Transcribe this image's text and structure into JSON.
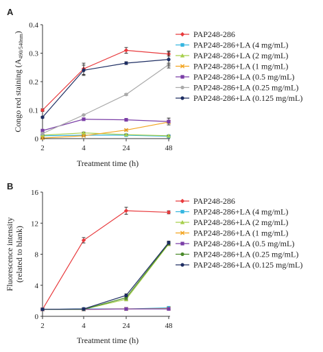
{
  "chart_data": [
    {
      "type": "line",
      "panel_label": "A",
      "title": "",
      "xlabel": "Treatment time (h)",
      "ylabel": "Congo red staining (A",
      "ylabel_sub": "490/540nm",
      "ylabel_close": ")",
      "categories": [
        "2",
        "4",
        "24",
        "48"
      ],
      "ylim": [
        0,
        0.4
      ],
      "yticks": [
        "0",
        "0.1",
        "0.2",
        "0.3",
        "0.4"
      ],
      "grid": false,
      "legend_position": "right",
      "series": [
        {
          "name": "PAP248-286",
          "color": "#e8393c",
          "marker": "diamond",
          "values": [
            0.1,
            0.245,
            0.31,
            0.297
          ],
          "err": [
            0.005,
            0.02,
            0.01,
            0.007
          ]
        },
        {
          "name": "PAP248-286+LA (4 mg/mL)",
          "color": "#35b6e0",
          "marker": "square",
          "values": [
            0.01,
            0.012,
            0.012,
            0.008
          ],
          "err": [
            0.002,
            0.002,
            0.002,
            0.002
          ]
        },
        {
          "name": "PAP248-286+LA (2 mg/mL)",
          "color": "#a6cf4c",
          "marker": "triangle",
          "values": [
            0.012,
            0.02,
            0.014,
            0.01
          ],
          "err": [
            0.002,
            0.003,
            0.002,
            0.002
          ]
        },
        {
          "name": "PAP248-286+LA (1 mg/mL)",
          "color": "#f3a41f",
          "marker": "cross",
          "values": [
            0.002,
            0.01,
            0.03,
            0.058
          ],
          "err": [
            0.001,
            0.002,
            0.003,
            0.004
          ]
        },
        {
          "name": "PAP248-286+LA (0.5 mg/mL)",
          "color": "#7a3da6",
          "marker": "square",
          "values": [
            0.028,
            0.068,
            0.066,
            0.06
          ],
          "err": [
            0.003,
            0.003,
            0.003,
            0.012
          ]
        },
        {
          "name": "PAP248-286+LA (0.25 mg/mL)",
          "color": "#a9a9a9",
          "marker": "circle",
          "values": [
            0.018,
            0.083,
            0.155,
            0.26
          ],
          "err": [
            0.002,
            0.002,
            0.003,
            0.005
          ]
        },
        {
          "name": "PAP248-286+LA (0.125 mg/mL)",
          "color": "#1d2d62",
          "marker": "circle",
          "values": [
            0.075,
            0.24,
            0.265,
            0.278
          ],
          "err": [
            0.003,
            0.018,
            0.005,
            0.03
          ]
        }
      ]
    },
    {
      "type": "line",
      "panel_label": "B",
      "title": "",
      "xlabel": "Treatment time (h)",
      "ylabel": "Fluorescence intensity",
      "ylabel2": "(related to blank)",
      "categories": [
        "2",
        "4",
        "24",
        "48"
      ],
      "ylim": [
        0,
        16
      ],
      "yticks": [
        "0",
        "4",
        "8",
        "12",
        "16"
      ],
      "grid": false,
      "legend_position": "right",
      "series": [
        {
          "name": "PAP248-286",
          "color": "#e8393c",
          "marker": "diamond",
          "values": [
            0.9,
            9.8,
            13.6,
            13.4
          ],
          "err": [
            0.05,
            0.35,
            0.45,
            0.2
          ]
        },
        {
          "name": "PAP248-286+LA (4 mg/mL)",
          "color": "#35b6e0",
          "marker": "square",
          "values": [
            0.9,
            0.95,
            0.95,
            1.1
          ],
          "err": [
            0.05,
            0.05,
            0.05,
            0.15
          ]
        },
        {
          "name": "PAP248-286+LA (2 mg/mL)",
          "color": "#a6cf4c",
          "marker": "triangle",
          "values": [
            0.9,
            0.9,
            2.2,
            9.3
          ],
          "err": [
            0.05,
            0.05,
            0.2,
            0.2
          ]
        },
        {
          "name": "PAP248-286+LA (1 mg/mL)",
          "color": "#f3a41f",
          "marker": "cross",
          "values": [
            0.9,
            0.9,
            0.95,
            1.0
          ],
          "err": [
            0.05,
            0.05,
            0.05,
            0.1
          ]
        },
        {
          "name": "PAP248-286+LA (0.5 mg/mL)",
          "color": "#7a3da6",
          "marker": "square",
          "values": [
            0.9,
            0.9,
            0.95,
            0.95
          ],
          "err": [
            0.05,
            0.05,
            0.05,
            0.05
          ]
        },
        {
          "name": "PAP248-286+LA (0.25 mg/mL)",
          "color": "#4a8a2a",
          "marker": "circle",
          "values": [
            0.9,
            0.9,
            2.4,
            9.4
          ],
          "err": [
            0.05,
            0.05,
            0.2,
            0.2
          ]
        },
        {
          "name": "PAP248-286+LA (0.125 mg/mL)",
          "color": "#1d2d62",
          "marker": "circle",
          "values": [
            0.9,
            0.95,
            2.7,
            9.5
          ],
          "err": [
            0.05,
            0.05,
            0.2,
            0.2
          ]
        }
      ]
    }
  ]
}
